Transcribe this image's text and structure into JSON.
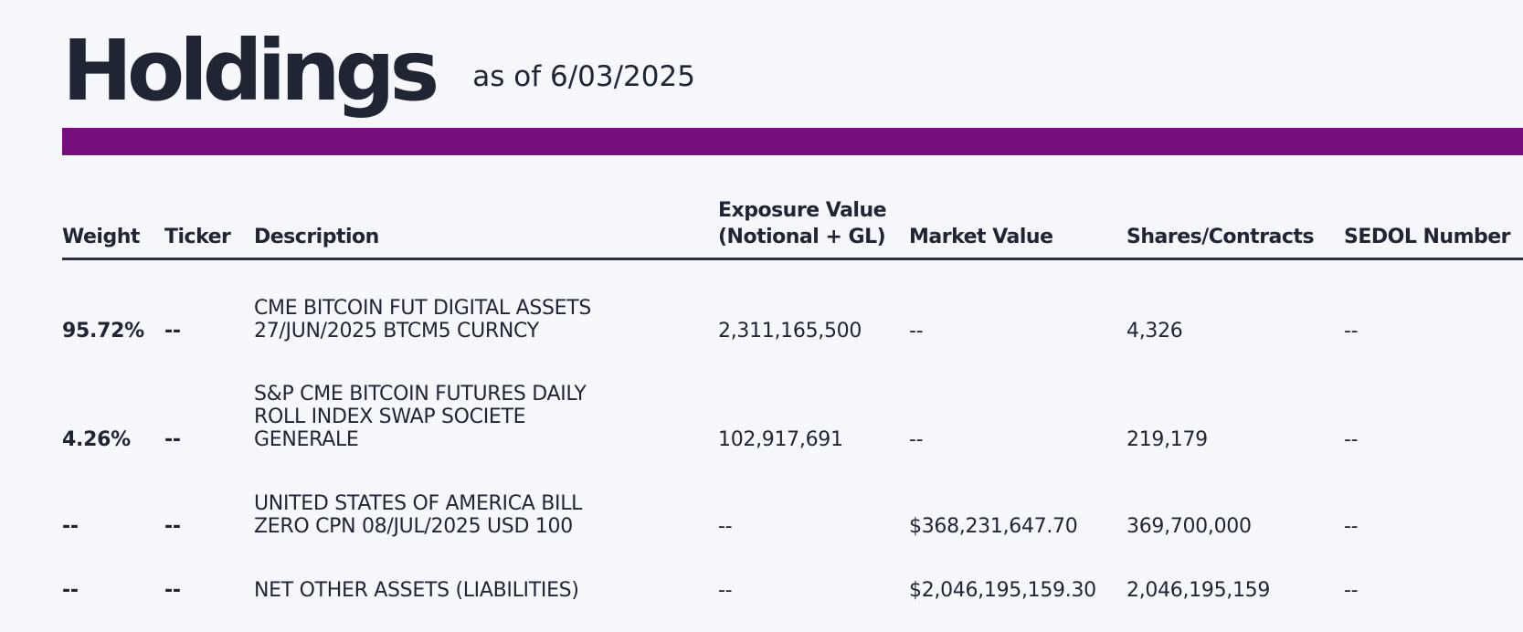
{
  "header": {
    "title": "Holdings",
    "as_of": "as of 6/03/2025"
  },
  "colors": {
    "accent": "#760e7e",
    "text": "#1f2533",
    "background": "#f5f7fb"
  },
  "table": {
    "columns": {
      "weight": "Weight",
      "ticker": "Ticker",
      "description": "Description",
      "exposure_line1": "Exposure Value",
      "exposure_line2": "(Notional + GL)",
      "market_value": "Market Value",
      "shares": "Shares/Contracts",
      "sedol": "SEDOL Number"
    },
    "rows": [
      {
        "weight": "95.72%",
        "ticker": "--",
        "description": "CME BITCOIN FUT DIGITAL ASSETS\n27/JUN/2025 BTCM5 CURNCY",
        "exposure": "2,311,165,500",
        "market_value": "--",
        "shares": "4,326",
        "sedol": "--"
      },
      {
        "weight": "4.26%",
        "ticker": "--",
        "description": "S&P CME BITCOIN FUTURES DAILY\nROLL INDEX SWAP SOCIETE\nGENERALE",
        "exposure": "102,917,691",
        "market_value": "--",
        "shares": "219,179",
        "sedol": "--"
      },
      {
        "weight": "--",
        "ticker": "--",
        "description": "UNITED STATES OF AMERICA BILL\nZERO CPN 08/JUL/2025 USD 100",
        "exposure": "--",
        "market_value": "$368,231,647.70",
        "shares": "369,700,000",
        "sedol": "--"
      },
      {
        "weight": "--",
        "ticker": "--",
        "description": "NET OTHER ASSETS (LIABILITIES)",
        "exposure": "--",
        "market_value": "$2,046,195,159.30",
        "shares": "2,046,195,159",
        "sedol": "--"
      }
    ]
  }
}
